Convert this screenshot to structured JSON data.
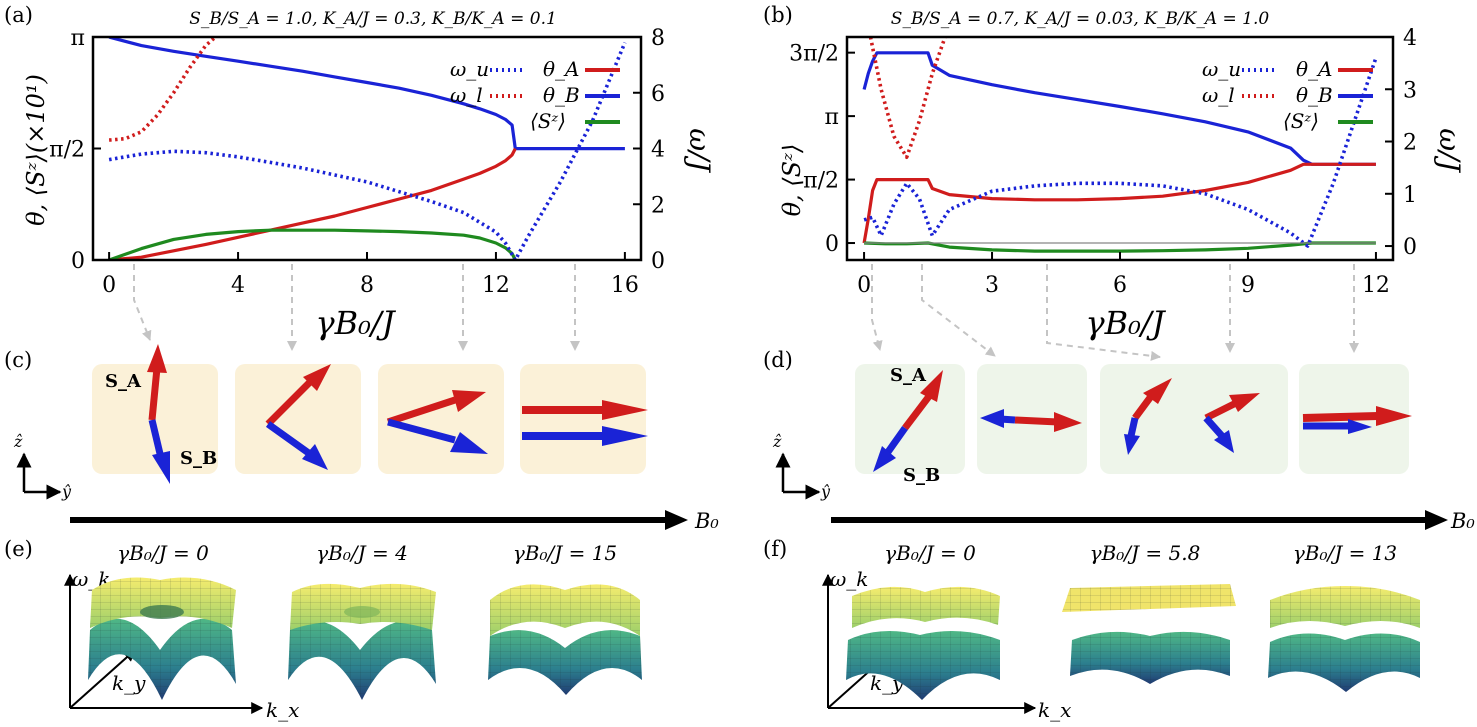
{
  "panels": {
    "a": {
      "label": "(a)",
      "title": "S_B/S_A = 1.0,  K_A/J = 0.3,  K_B/K_A = 0.1",
      "xlabel": "γB₀/J",
      "ylabel_left": "θ, ⟨Sᶻ⟩(×10¹)",
      "ylabel_right": "ω/J",
      "xticks": [
        "0",
        "4",
        "8",
        "12",
        "16"
      ],
      "yticks_left": [
        "0",
        "π/2",
        "π"
      ],
      "yticks_right": [
        "0",
        "2",
        "4",
        "6",
        "8"
      ],
      "legend": [
        "ω_u",
        "ω_l",
        "θ_A",
        "θ_B",
        "⟨Sᶻ⟩"
      ]
    },
    "b": {
      "label": "(b)",
      "title": "S_B/S_A = 0.7,  K_A/J = 0.03,  K_B/K_A = 1.0",
      "xlabel": "γB₀/J",
      "ylabel_left": "θ, ⟨Sᶻ⟩",
      "ylabel_right": "ω/J",
      "xticks": [
        "0",
        "3",
        "6",
        "9",
        "12"
      ],
      "yticks_left": [
        "0",
        "π/2",
        "π",
        "3π/2"
      ],
      "yticks_right": [
        "0",
        "1",
        "2",
        "3",
        "4"
      ],
      "legend": [
        "ω_u",
        "ω_l",
        "θ_A",
        "θ_B",
        "⟨Sᶻ⟩"
      ]
    },
    "c": {
      "label": "(c)",
      "spin_a": "S_A",
      "spin_b": "S_B",
      "z_axis": "ẑ",
      "y_axis": "ŷ",
      "field_label": "B₀"
    },
    "d": {
      "label": "(d)",
      "spin_a": "S_A",
      "spin_b": "S_B",
      "z_axis": "ẑ",
      "y_axis": "ŷ",
      "field_label": "B₀"
    },
    "e": {
      "label": "(e)",
      "titles": [
        "γB₀/J = 0",
        "γB₀/J = 4",
        "γB₀/J = 15"
      ],
      "z_label": "ω_k",
      "kx_label": "k_x",
      "ky_label": "k_y"
    },
    "f": {
      "label": "(f)",
      "titles": [
        "γB₀/J = 0",
        "γB₀/J = 5.8",
        "γB₀/J = 13"
      ],
      "z_label": "ω_k",
      "kx_label": "k_x",
      "ky_label": "k_y"
    }
  },
  "colors": {
    "red": "#d01c1c",
    "blue": "#1a23d6",
    "green": "#1f8a1f",
    "yellow_box": "#fbf1d8",
    "green_box": "#eef5ea"
  },
  "chart_data": [
    {
      "type": "line",
      "title": "S_B/S_A = 1.0,  K_A/J = 0.3,  K_B/K_A = 0.1",
      "xlabel": "γB₀/J",
      "ylabel": "θ, ⟨Sᶻ⟩(×10¹)",
      "y2label": "ω/J",
      "xlim": [
        -0.5,
        16.5
      ],
      "ylim": [
        0,
        3.1416
      ],
      "y2lim": [
        0,
        8
      ],
      "series": [
        {
          "name": "θ_B",
          "axis": "left",
          "style": "solid",
          "color": "#1a23d6",
          "x": [
            0,
            1,
            2,
            3,
            4,
            5,
            6,
            7,
            8,
            9,
            10,
            11,
            11.5,
            12,
            12.3,
            12.5,
            12.6,
            13,
            14,
            15,
            16
          ],
          "y": [
            3.14,
            3.02,
            2.94,
            2.87,
            2.8,
            2.73,
            2.66,
            2.58,
            2.5,
            2.42,
            2.32,
            2.2,
            2.13,
            2.05,
            1.98,
            1.9,
            1.57,
            1.57,
            1.57,
            1.57,
            1.57
          ]
        },
        {
          "name": "θ_A",
          "axis": "left",
          "style": "solid",
          "color": "#d01c1c",
          "x": [
            0,
            1,
            2,
            3,
            4,
            5,
            6,
            7,
            8,
            9,
            10,
            11,
            11.5,
            12,
            12.3,
            12.5,
            12.6
          ],
          "y": [
            0,
            0.04,
            0.13,
            0.22,
            0.32,
            0.42,
            0.52,
            0.62,
            0.74,
            0.86,
            0.98,
            1.14,
            1.22,
            1.32,
            1.4,
            1.48,
            1.57
          ]
        },
        {
          "name": "⟨Sᶻ⟩",
          "axis": "left",
          "style": "solid",
          "color": "#1f8a1f",
          "x": [
            0,
            1,
            2,
            3,
            4,
            5,
            6,
            7,
            8,
            9,
            10,
            11,
            11.5,
            12,
            12.3,
            12.5,
            12.6
          ],
          "y": [
            0,
            0.16,
            0.29,
            0.36,
            0.4,
            0.42,
            0.42,
            0.42,
            0.41,
            0.4,
            0.38,
            0.35,
            0.31,
            0.24,
            0.17,
            0.09,
            0
          ]
        },
        {
          "name": "ω_u",
          "axis": "right",
          "style": "dotted",
          "color": "#1a23d6",
          "x": [
            0,
            1,
            2,
            3,
            4,
            5,
            6,
            7,
            8,
            9,
            10,
            11,
            12,
            12.3,
            12.6,
            13,
            14,
            15,
            16
          ],
          "y": [
            3.6,
            3.8,
            3.9,
            3.85,
            3.7,
            3.5,
            3.3,
            3.05,
            2.8,
            2.45,
            2.1,
            1.7,
            1.0,
            0.6,
            0,
            0.85,
            2.8,
            5.0,
            7.8
          ]
        },
        {
          "name": "ω_l",
          "axis": "right",
          "style": "dotted",
          "color": "#d01c1c",
          "x": [
            0,
            0.5,
            1,
            1.5,
            2,
            2.5,
            3,
            3.3
          ],
          "y": [
            4.3,
            4.35,
            4.6,
            5.2,
            6.0,
            6.9,
            7.7,
            8.0
          ]
        }
      ]
    },
    {
      "type": "line",
      "title": "S_B/S_A = 0.7,  K_A/J = 0.03,  K_B/K_A = 1.0",
      "xlabel": "γB₀/J",
      "ylabel": "θ, ⟨Sᶻ⟩",
      "y2label": "ω/J",
      "xlim": [
        -0.4,
        12.4
      ],
      "ylim": [
        -0.42,
        5.1
      ],
      "y2lim": [
        -0.267,
        4.0
      ],
      "series": [
        {
          "name": "θ_B",
          "axis": "left",
          "style": "solid",
          "color": "#1a23d6",
          "x": [
            0,
            0.1,
            0.2,
            0.3,
            1.5,
            1.6,
            2,
            3,
            4,
            5,
            6,
            7,
            8,
            9,
            10,
            10.3,
            10.5,
            11,
            12
          ],
          "y": [
            3.8,
            4.2,
            4.5,
            4.71,
            4.71,
            4.4,
            4.15,
            3.92,
            3.72,
            3.55,
            3.38,
            3.2,
            3.0,
            2.75,
            2.35,
            2.05,
            1.95,
            1.95,
            1.95
          ]
        },
        {
          "name": "θ_A",
          "axis": "left",
          "style": "solid",
          "color": "#d01c1c",
          "x": [
            0,
            0.1,
            0.2,
            0.3,
            1.5,
            1.6,
            2,
            3,
            4,
            5,
            6,
            7,
            8,
            9,
            10,
            10.3,
            10.5,
            11,
            12
          ],
          "y": [
            0,
            0.6,
            1.3,
            1.57,
            1.57,
            1.35,
            1.2,
            1.1,
            1.07,
            1.07,
            1.1,
            1.16,
            1.3,
            1.5,
            1.8,
            1.95,
            1.95,
            1.95,
            1.95
          ]
        },
        {
          "name": "⟨Sᶻ⟩",
          "axis": "left",
          "style": "solid",
          "color": "#1f8a1f",
          "x": [
            0,
            0.5,
            1,
            1.5,
            2,
            3,
            4,
            5,
            6,
            7,
            8,
            9,
            10,
            10.5,
            11,
            12
          ],
          "y": [
            0,
            -0.02,
            -0.02,
            0,
            -0.1,
            -0.17,
            -0.2,
            -0.2,
            -0.2,
            -0.19,
            -0.17,
            -0.13,
            -0.05,
            0,
            0,
            0
          ]
        },
        {
          "name": "ω_u",
          "axis": "right",
          "style": "dotted",
          "color": "#1a23d6",
          "x": [
            0,
            0.2,
            0.4,
            0.7,
            1,
            1.3,
            1.6,
            2,
            3,
            4,
            5,
            6,
            7,
            8,
            9,
            10,
            10.4,
            11,
            12
          ],
          "y": [
            0.5,
            0.55,
            0.2,
            0.8,
            1.2,
            0.9,
            0.2,
            0.7,
            1.05,
            1.15,
            1.2,
            1.2,
            1.15,
            1.0,
            0.7,
            0.25,
            0,
            1.2,
            3.6
          ]
        },
        {
          "name": "ω_l",
          "axis": "right",
          "style": "dotted",
          "color": "#d01c1c",
          "x": [
            0.15,
            0.4,
            0.7,
            1,
            1.3,
            1.6,
            1.9
          ],
          "y": [
            4.0,
            3.0,
            2.1,
            1.7,
            2.4,
            3.3,
            4.0
          ]
        },
        {
          "name": "zero-line",
          "axis": "left",
          "style": "thin",
          "color": "#888888",
          "x": [
            0,
            12
          ],
          "y": [
            0,
            0
          ]
        }
      ]
    }
  ]
}
